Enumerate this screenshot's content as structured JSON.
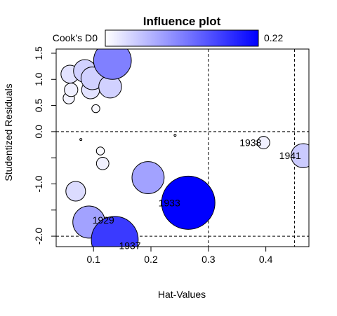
{
  "chart_data": {
    "type": "scatter",
    "title": "Influence plot",
    "xlabel": "Hat-Values",
    "ylabel": "Studentized Residuals",
    "xlim": [
      0.035,
      0.475
    ],
    "ylim": [
      -2.2,
      1.58
    ],
    "x_ticks": [
      0.1,
      0.2,
      0.3,
      0.4
    ],
    "x_tick_labels": [
      "0.1",
      "0.2",
      "0.3",
      "0.4"
    ],
    "y_ticks": [
      -2.0,
      -1.0,
      0.0,
      0.5,
      1.0,
      1.5
    ],
    "y_tick_labels": [
      "-2.0",
      "-1.0",
      "0.0",
      "0.5",
      "1.0",
      "1.5"
    ],
    "y_minor_ticks": [
      -1.5,
      -0.5
    ],
    "reference_lines": {
      "horizontal": [
        0,
        -2
      ],
      "vertical": [
        0.3,
        0.45
      ]
    },
    "legend": {
      "label": "Cook's D:",
      "min_label": "0",
      "max_label": "0.22",
      "min": 0,
      "max": 0.22,
      "color_low": "#ffffff",
      "color_high": "#0000ff",
      "placement": "top"
    },
    "points": [
      {
        "x": 0.057,
        "y": 0.64,
        "d": 0.01,
        "label": ""
      },
      {
        "x": 0.061,
        "y": 0.8,
        "d": 0.014,
        "label": ""
      },
      {
        "x": 0.059,
        "y": 1.1,
        "d": 0.025,
        "label": ""
      },
      {
        "x": 0.085,
        "y": 1.16,
        "d": 0.04,
        "label": ""
      },
      {
        "x": 0.095,
        "y": 0.8,
        "d": 0.025,
        "label": ""
      },
      {
        "x": 0.098,
        "y": 1.02,
        "d": 0.04,
        "label": ""
      },
      {
        "x": 0.104,
        "y": 0.44,
        "d": 0.005,
        "label": ""
      },
      {
        "x": 0.129,
        "y": 0.86,
        "d": 0.04,
        "label": ""
      },
      {
        "x": 0.133,
        "y": 1.36,
        "d": 0.11,
        "label": ""
      },
      {
        "x": 0.078,
        "y": -0.15,
        "d": 0.0,
        "label": ""
      },
      {
        "x": 0.112,
        "y": -0.37,
        "d": 0.005,
        "label": ""
      },
      {
        "x": 0.116,
        "y": -0.61,
        "d": 0.012,
        "label": ""
      },
      {
        "x": 0.069,
        "y": -1.14,
        "d": 0.03,
        "label": ""
      },
      {
        "x": 0.242,
        "y": -0.07,
        "d": 0.0,
        "label": ""
      },
      {
        "x": 0.195,
        "y": -0.88,
        "d": 0.08,
        "label": ""
      },
      {
        "x": 0.265,
        "y": -1.36,
        "d": 0.22,
        "label": "1933"
      },
      {
        "x": 0.092,
        "y": -1.73,
        "d": 0.08,
        "label": "1929"
      },
      {
        "x": 0.137,
        "y": -2.07,
        "d": 0.17,
        "label": "1937"
      },
      {
        "x": 0.396,
        "y": -0.21,
        "d": 0.012,
        "label": "1938"
      },
      {
        "x": 0.465,
        "y": -0.46,
        "d": 0.045,
        "label": "1941"
      }
    ]
  }
}
